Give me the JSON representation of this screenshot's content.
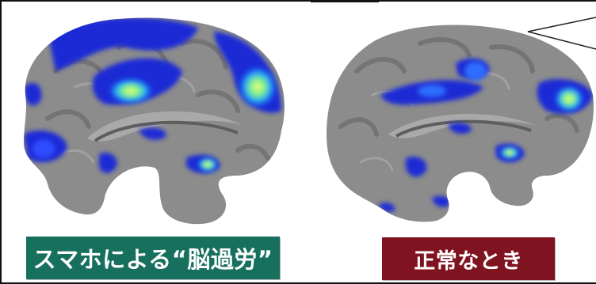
{
  "labels": {
    "left": "スマホによる“脳過労”",
    "right": "正常なとき"
  },
  "colors": {
    "left_label_bg": "#16705d",
    "right_label_bg": "#7f1320",
    "brain_tissue": "#8c8c8c",
    "activation_blue": "#1a2bd6",
    "activation_hot": "#a8f26a"
  }
}
